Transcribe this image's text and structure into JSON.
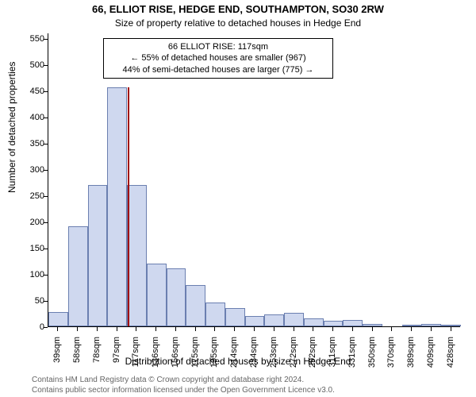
{
  "title": "66, ELLIOT RISE, HEDGE END, SOUTHAMPTON, SO30 2RW",
  "subtitle": "Size of property relative to detached houses in Hedge End",
  "ylabel": "Number of detached properties",
  "xlabel": "Distribution of detached houses by size in Hedge End",
  "attribution_line1": "Contains HM Land Registry data © Crown copyright and database right 2024.",
  "attribution_line2": "Contains public sector information licensed under the Open Government Licence v3.0.",
  "chart": {
    "type": "histogram",
    "background_color": "#ffffff",
    "bar_fill_color": "#cfd8ef",
    "bar_border_color": "#6b7fb0",
    "marker_color": "#a00000",
    "axis_color": "#000000",
    "ylim": [
      0,
      560
    ],
    "y_ticks": [
      0,
      50,
      100,
      150,
      200,
      250,
      300,
      350,
      400,
      450,
      500,
      550
    ],
    "x_categories": [
      "39sqm",
      "58sqm",
      "78sqm",
      "97sqm",
      "117sqm",
      "136sqm",
      "156sqm",
      "175sqm",
      "195sqm",
      "214sqm",
      "234sqm",
      "253sqm",
      "272sqm",
      "292sqm",
      "311sqm",
      "331sqm",
      "350sqm",
      "370sqm",
      "389sqm",
      "409sqm",
      "428sqm"
    ],
    "bar_values": [
      28,
      190,
      270,
      455,
      270,
      120,
      110,
      78,
      45,
      35,
      20,
      22,
      25,
      15,
      10,
      12,
      5,
      0,
      3,
      5,
      3
    ],
    "bar_count": 21,
    "bar_width_ratio": 1.0,
    "marker_bin_index": 4,
    "marker_height_value": 455,
    "label_fontsize": 12,
    "tick_fontsize": 11,
    "title_fontsize": 13
  },
  "annotation": {
    "line1": "66 ELLIOT RISE: 117sqm",
    "line2": "← 55% of detached houses are smaller (967)",
    "line3": "44% of semi-detached houses are larger (775) →",
    "box_border_color": "#000000",
    "box_background": "#ffffff",
    "fontsize": 11
  }
}
